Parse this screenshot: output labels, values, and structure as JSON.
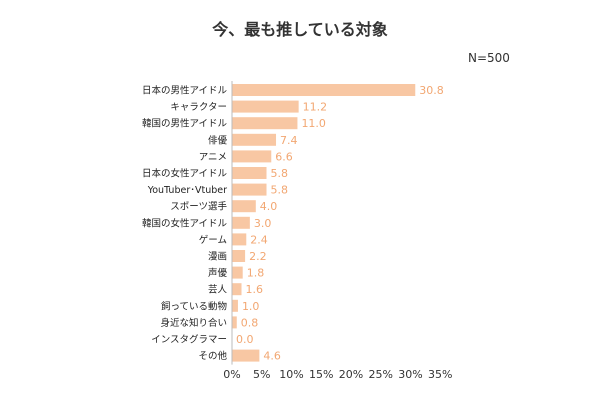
{
  "colors": {
    "bar": "#F8C7A3",
    "value_label": "#F2A772",
    "axis": "#BBBBBB",
    "text": "#333333"
  },
  "chart_data": {
    "type": "bar",
    "orientation": "horizontal",
    "title": "今、最も推している対象",
    "note": "N=500",
    "categories": [
      "日本の男性アイドル",
      "キャラクター",
      "韓国の男性アイドル",
      "俳優",
      "アニメ",
      "日本の女性アイドル",
      "YouTuber･Vtuber",
      "スポーツ選手",
      "韓国の女性アイドル",
      "ゲーム",
      "漫画",
      "声優",
      "芸人",
      "飼っている動物",
      "身近な知り合い",
      "インスタグラマー",
      "その他"
    ],
    "values": [
      30.8,
      11.2,
      11.0,
      7.4,
      6.6,
      5.8,
      5.8,
      4.0,
      3.0,
      2.4,
      2.2,
      1.8,
      1.6,
      1.0,
      0.8,
      0.0,
      4.6
    ],
    "value_labels": [
      "30.8",
      "11.2",
      "11.0",
      "7.4",
      "6.6",
      "5.8",
      "5.8",
      "4.0",
      "3.0",
      "2.4",
      "2.2",
      "1.8",
      "1.6",
      "1.0",
      "0.8",
      "0.0",
      "4.6"
    ],
    "xlim": [
      0,
      35
    ],
    "xticks": [
      0,
      5,
      10,
      15,
      20,
      25,
      30,
      35
    ],
    "xtick_labels": [
      "0%",
      "5%",
      "10%",
      "15%",
      "20%",
      "25%",
      "30%",
      "35%"
    ],
    "xlabel": "",
    "ylabel": "",
    "grid": false
  }
}
